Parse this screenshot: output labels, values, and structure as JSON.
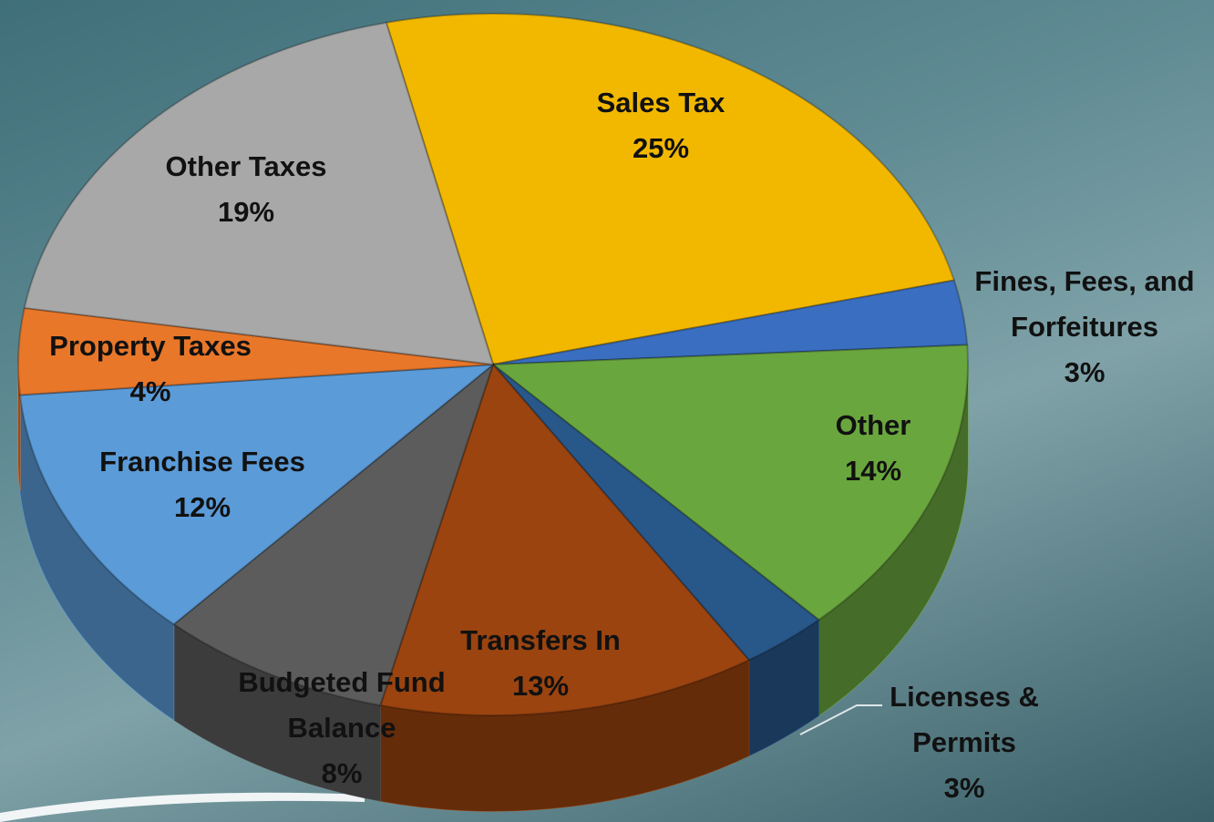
{
  "chart_data": {
    "type": "pie",
    "categories": [
      "Sales Tax",
      "Fines, Fees, and Forfeitures",
      "Other",
      "Licenses & Permits",
      "Transfers In",
      "Budgeted Fund Balance",
      "Franchise Fees",
      "Property Taxes",
      "Other Taxes"
    ],
    "values": [
      25,
      3,
      14,
      3,
      13,
      8,
      12,
      4,
      19
    ],
    "value_labels": [
      "25%",
      "3%",
      "14%",
      "3%",
      "13%",
      "8%",
      "12%",
      "4%",
      "19%"
    ],
    "colors": [
      "#f2b800",
      "#3a6ec0",
      "#6aa63e",
      "#28578a",
      "#9b4410",
      "#5c5c5c",
      "#5b9bd8",
      "#e8772a",
      "#a8a8a8"
    ]
  }
}
